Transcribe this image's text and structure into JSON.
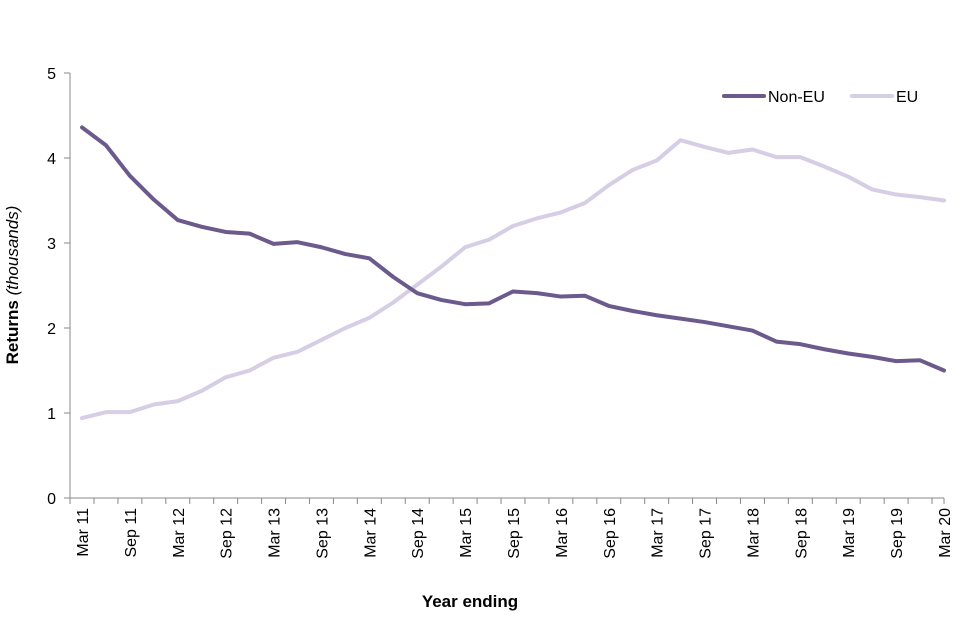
{
  "chart_data": {
    "type": "line",
    "title": "",
    "xlabel": "Year ending",
    "ylabel": "Returns",
    "ylabel_unit": "(thousands)",
    "ylim": [
      0,
      5
    ],
    "yticks": [
      0,
      1,
      2,
      3,
      4,
      5
    ],
    "grid": false,
    "legend_position": "top-right",
    "x": [
      "Mar 11",
      "Jun 11",
      "Sep 11",
      "Dec 11",
      "Mar 12",
      "Jun 12",
      "Sep 12",
      "Dec 12",
      "Mar 13",
      "Jun 13",
      "Sep 13",
      "Dec 13",
      "Mar 14",
      "Jun 14",
      "Sep 14",
      "Dec 14",
      "Mar 15",
      "Jun 15",
      "Sep 15",
      "Dec 15",
      "Mar 16",
      "Jun 16",
      "Sep 16",
      "Dec 16",
      "Mar 17",
      "Jun 17",
      "Sep 17",
      "Dec 17",
      "Mar 18",
      "Jun 18",
      "Sep 18",
      "Dec 18",
      "Mar 19",
      "Jun 19",
      "Sep 19",
      "Dec 19",
      "Mar 20"
    ],
    "xtick_labels": [
      "Mar 11",
      "Sep 11",
      "Mar 12",
      "Sep 12",
      "Mar 13",
      "Sep 13",
      "Mar 14",
      "Sep 14",
      "Mar 15",
      "Sep 15",
      "Mar 16",
      "Sep 16",
      "Mar 17",
      "Sep 17",
      "Mar 18",
      "Sep 18",
      "Mar 19",
      "Sep 19",
      "Mar 20"
    ],
    "series": [
      {
        "name": "Non-EU",
        "color": "#6b5a8b",
        "values": [
          4.36,
          4.15,
          3.79,
          3.51,
          3.27,
          3.19,
          3.13,
          3.11,
          2.99,
          3.01,
          2.95,
          2.87,
          2.82,
          2.6,
          2.41,
          2.33,
          2.28,
          2.29,
          2.43,
          2.41,
          2.37,
          2.38,
          2.26,
          2.2,
          2.15,
          2.11,
          2.07,
          2.02,
          1.97,
          1.84,
          1.81,
          1.75,
          1.7,
          1.66,
          1.61,
          1.62,
          1.5
        ]
      },
      {
        "name": "EU",
        "color": "#d5cee4",
        "values": [
          0.94,
          1.01,
          1.01,
          1.1,
          1.14,
          1.26,
          1.42,
          1.5,
          1.65,
          1.72,
          1.86,
          2.0,
          2.12,
          2.3,
          2.51,
          2.72,
          2.95,
          3.04,
          3.2,
          3.29,
          3.36,
          3.47,
          3.68,
          3.86,
          3.97,
          4.21,
          4.13,
          4.06,
          4.1,
          4.01,
          4.01,
          3.9,
          3.78,
          3.63,
          3.57,
          3.54,
          3.5
        ]
      }
    ]
  }
}
